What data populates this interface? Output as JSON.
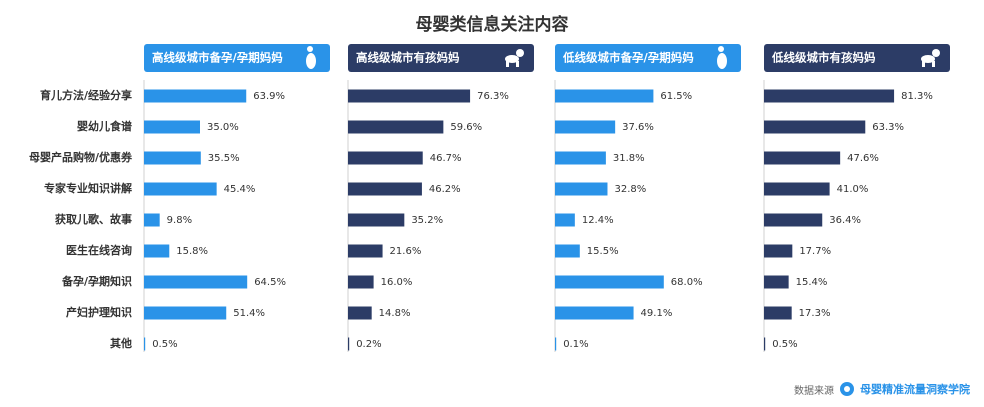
{
  "chart_data": {
    "type": "bar",
    "title": "母婴类信息关注内容",
    "categories": [
      "育儿方法/经验分享",
      "婴幼儿食谱",
      "母婴产品购物/优惠券",
      "专家专业知识讲解",
      "获取儿歌、故事",
      "医生在线咨询",
      "备孕/孕期知识",
      "产妇护理知识",
      "其他"
    ],
    "series": [
      {
        "name": "高线级城市备孕/孕期妈妈",
        "color": "#2a93e8",
        "icon": "pregnant-woman-icon",
        "values": [
          63.9,
          35.0,
          35.5,
          45.4,
          9.8,
          15.8,
          64.5,
          51.4,
          0.5
        ],
        "labels": [
          "63.9%",
          "35.0%",
          "35.5%",
          "45.4%",
          "9.8%",
          "15.8%",
          "64.5%",
          "51.4%",
          "0.5%"
        ]
      },
      {
        "name": "高线级城市有孩妈妈",
        "color": "#2c3c66",
        "icon": "crawling-baby-icon",
        "values": [
          76.3,
          59.6,
          46.7,
          46.2,
          35.2,
          21.6,
          16.0,
          14.8,
          0.2
        ],
        "labels": [
          "76.3%",
          "59.6%",
          "46.7%",
          "46.2%",
          "35.2%",
          "21.6%",
          "16.0%",
          "14.8%",
          "0.2%"
        ]
      },
      {
        "name": "低线级城市备孕/孕期妈妈",
        "color": "#2a93e8",
        "icon": "pregnant-woman-icon",
        "values": [
          61.5,
          37.6,
          31.8,
          32.8,
          12.4,
          15.5,
          68.0,
          49.1,
          0.1
        ],
        "labels": [
          "61.5%",
          "37.6%",
          "31.8%",
          "32.8%",
          "12.4%",
          "15.5%",
          "68.0%",
          "49.1%",
          "0.1%"
        ]
      },
      {
        "name": "低线级城市有孩妈妈",
        "color": "#2c3c66",
        "icon": "crawling-baby-icon",
        "values": [
          81.3,
          63.3,
          47.6,
          41.0,
          36.4,
          17.7,
          15.4,
          17.3,
          0.5
        ],
        "labels": [
          "81.3%",
          "63.3%",
          "47.6%",
          "41.0%",
          "36.4%",
          "17.7%",
          "15.4%",
          "17.3%",
          "0.5%"
        ]
      }
    ]
  },
  "footer": {
    "source_label": "数据来源",
    "source_org": "母婴精准流量洞察学院"
  }
}
